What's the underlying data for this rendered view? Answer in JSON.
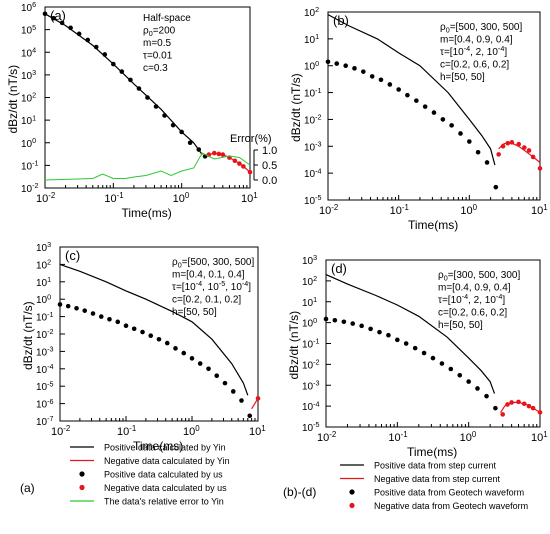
{
  "panels": [
    {
      "id": "a",
      "label": "(a)",
      "params": [
        "Half-space",
        "ρ0=200",
        "m=0.5",
        "τ=0.01",
        "c=0.3"
      ],
      "xlabel": "Time(ms)",
      "ylabel": "dBz/dt (nT/s)",
      "x_ticks": [
        "10-2",
        "10-1",
        "100",
        "101"
      ],
      "y_ticks": [
        "10-2",
        "10-1",
        "100",
        "101",
        "102",
        "103",
        "104",
        "105",
        "106"
      ],
      "error_axis": {
        "title": "Error(%)",
        "ticks": [
          "0.0",
          "0.5",
          "1.0"
        ]
      }
    },
    {
      "id": "b",
      "label": "(b)",
      "params": [
        "ρ0=[500, 300, 500]",
        "m=[0.4, 0.9, 0.4]",
        "τ=[10-4, 2, 10-4]",
        "c=[0.2, 0.6, 0.2]",
        "h=[50, 50]"
      ],
      "xlabel": "Time(ms)",
      "ylabel": "dBz/dt (nT/s)",
      "x_ticks": [
        "10-2",
        "10-1",
        "100",
        "101"
      ],
      "y_ticks": [
        "10-5",
        "10-4",
        "10-3",
        "10-2",
        "10-1",
        "100",
        "101",
        "102"
      ]
    },
    {
      "id": "c",
      "label": "(c)",
      "params": [
        "ρ0=[500, 300, 500]",
        "m=[0.4, 0.1, 0.4]",
        "τ=[10-4, 10-5, 10-4]",
        "c=[0.2, 0.1, 0.2]",
        "h=[50, 50]"
      ],
      "xlabel": "Time(ms)",
      "ylabel": "dBz/dt (nT/s)",
      "x_ticks": [
        "10-2",
        "10-1",
        "100",
        "101"
      ],
      "y_ticks": [
        "10-7",
        "10-6",
        "10-5",
        "10-4",
        "10-3",
        "10-2",
        "10-1",
        "100",
        "101",
        "102",
        "103"
      ]
    },
    {
      "id": "d",
      "label": "(d)",
      "params": [
        "ρ0=[300, 500, 300]",
        "m=[0.4, 0.9, 0.4]",
        "τ=[10-4, 2, 10-4]",
        "c=[0.2, 0.6, 0.2]",
        "h=[50, 50]"
      ],
      "xlabel": "Time(ms)",
      "ylabel": "dBz/dt (nT/s)",
      "x_ticks": [
        "10-2",
        "10-1",
        "100",
        "101"
      ],
      "y_ticks": [
        "10-5",
        "10-4",
        "10-3",
        "10-2",
        "10-1",
        "100",
        "101",
        "102",
        "103"
      ]
    }
  ],
  "legends": [
    {
      "id": "a",
      "tag": "(a)",
      "items": [
        {
          "text": "Positive data  calculated by Yin",
          "style": "line",
          "color": "#000000"
        },
        {
          "text": "Negative data calculated by Yin",
          "style": "line",
          "color": "#e8141b"
        },
        {
          "text": "Positive data calculated by us",
          "style": "dot",
          "color": "#000000"
        },
        {
          "text": "Negative data calculated by us",
          "style": "dot",
          "color": "#e8141b"
        },
        {
          "text": "The data's relative error to Yin",
          "style": "line",
          "color": "#2ec832"
        }
      ]
    },
    {
      "id": "bd",
      "tag": "(b)-(d)",
      "items": [
        {
          "text": "Positive data from step current",
          "style": "line",
          "color": "#000000"
        },
        {
          "text": "Negative data from step current",
          "style": "line",
          "color": "#e8141b"
        },
        {
          "text": "Positive data from Geotech waveform",
          "style": "dot",
          "color": "#000000"
        },
        {
          "text": "Negative data from Geotech waveform",
          "style": "dot",
          "color": "#e8141b"
        }
      ]
    }
  ],
  "colors": {
    "positive": "#000000",
    "negative": "#e8141b",
    "error": "#2ec832"
  },
  "chart_data": [
    {
      "panel": "a",
      "type": "line",
      "xscale": "log",
      "yscale": "log",
      "xlim": [
        0.01,
        10
      ],
      "ylim": [
        0.01,
        1000000
      ],
      "series": [
        {
          "name": "Positive data  calculated by Yin",
          "style": "line",
          "color": "#000000",
          "x": [
            0.01,
            0.02,
            0.05,
            0.1,
            0.2,
            0.5,
            1.0,
            1.5,
            2.0
          ],
          "y": [
            500000,
            150000,
            20000,
            3000,
            400,
            30,
            3,
            1.0,
            0.3
          ]
        },
        {
          "name": "Positive data calculated by us",
          "style": "dot",
          "color": "#000000",
          "x": [
            0.01,
            0.0133,
            0.0178,
            0.0237,
            0.0316,
            0.0422,
            0.0562,
            0.075,
            0.1,
            0.133,
            0.178,
            0.237,
            0.316,
            0.422,
            0.562,
            0.75,
            1.0,
            1.33,
            1.78,
            2.2
          ],
          "y": [
            500000,
            320000,
            200000,
            120000,
            65000,
            35000,
            17000,
            8000,
            3000,
            1400,
            600,
            250,
            100,
            40,
            16,
            6,
            3,
            1.0,
            0.5,
            0.25
          ]
        },
        {
          "name": "Negative data calculated by Yin",
          "style": "line",
          "color": "#e8141b",
          "x": [
            2.5,
            3.0,
            4.0,
            5.0,
            6.5,
            8.0,
            10.0
          ],
          "y": [
            0.3,
            0.35,
            0.3,
            0.22,
            0.14,
            0.09,
            0.05
          ]
        },
        {
          "name": "Negative data calculated by us",
          "style": "dot",
          "color": "#e8141b",
          "x": [
            2.5,
            3.0,
            3.5,
            4.0,
            5.0,
            6.0,
            7.0,
            8.0,
            10.0
          ],
          "y": [
            0.3,
            0.35,
            0.32,
            0.3,
            0.22,
            0.16,
            0.12,
            0.09,
            0.05
          ]
        },
        {
          "name": "The data's relative error to Yin",
          "style": "line",
          "color": "#2ec832",
          "axis": "error",
          "x": [
            0.01,
            0.02,
            0.05,
            0.07,
            0.1,
            0.15,
            0.2,
            0.3,
            0.5,
            0.7,
            1.0,
            1.5,
            2.0,
            3.0,
            5.0,
            7.0,
            10.0
          ],
          "y": [
            0.0,
            0.02,
            0.05,
            0.2,
            0.05,
            0.05,
            0.1,
            0.15,
            0.3,
            0.15,
            0.3,
            0.4,
            0.9,
            0.7,
            0.8,
            0.75,
            0.5
          ]
        }
      ],
      "error_axis": {
        "ylim": [
          0,
          1.0
        ],
        "ticks": [
          0.0,
          0.5,
          1.0
        ],
        "title": "Error(%)"
      }
    },
    {
      "panel": "b",
      "type": "line",
      "xscale": "log",
      "yscale": "log",
      "xlim": [
        0.01,
        10
      ],
      "ylim": [
        1e-05,
        100
      ],
      "series": [
        {
          "name": "Positive data from step current",
          "style": "line",
          "color": "#000000",
          "x": [
            0.01,
            0.02,
            0.05,
            0.1,
            0.2,
            0.5,
            1.0,
            1.5,
            2.0,
            2.3
          ],
          "y": [
            80,
            30,
            10,
            3,
            1.0,
            0.1,
            0.01,
            0.0025,
            0.0008,
            0.0002
          ]
        },
        {
          "name": "Positive data from Geotech waveform",
          "style": "dot",
          "color": "#000000",
          "x": [
            0.01,
            0.0133,
            0.0178,
            0.0237,
            0.0316,
            0.0422,
            0.0562,
            0.075,
            0.1,
            0.133,
            0.178,
            0.237,
            0.316,
            0.422,
            0.562,
            0.75,
            1.0,
            1.33,
            1.78,
            2.37
          ],
          "y": [
            1.4,
            1.2,
            1.0,
            0.8,
            0.6,
            0.4,
            0.3,
            0.2,
            0.13,
            0.08,
            0.05,
            0.03,
            0.018,
            0.01,
            0.006,
            0.003,
            0.0015,
            0.0006,
            0.00025,
            3e-05
          ]
        },
        {
          "name": "Negative data from step current",
          "style": "line",
          "color": "#e8141b",
          "x": [
            2.6,
            3.0,
            3.5,
            4.0,
            5.0,
            6.5,
            8.0,
            10.0
          ],
          "y": [
            0.0008,
            0.0012,
            0.0014,
            0.0013,
            0.001,
            0.0006,
            0.0004,
            0.00025
          ]
        },
        {
          "name": "Negative data from Geotech waveform",
          "style": "dot",
          "color": "#e8141b",
          "x": [
            2.6,
            3.0,
            3.5,
            4.0,
            5.0,
            6.0,
            7.0,
            8.0,
            10.0
          ],
          "y": [
            0.0005,
            0.001,
            0.0013,
            0.0014,
            0.0012,
            0.0009,
            0.0007,
            0.0004,
            0.00015
          ]
        }
      ]
    },
    {
      "panel": "c",
      "type": "line",
      "xscale": "log",
      "yscale": "log",
      "xlim": [
        0.01,
        10
      ],
      "ylim": [
        1e-07,
        1000
      ],
      "series": [
        {
          "name": "Positive data from step current",
          "style": "line",
          "color": "#000000",
          "x": [
            0.01,
            0.02,
            0.05,
            0.1,
            0.2,
            0.5,
            1.0,
            2.0,
            4.0,
            6.0,
            7.0
          ],
          "y": [
            100,
            40,
            10,
            3,
            1.0,
            0.2,
            0.05,
            0.005,
            0.0002,
            1.5e-05,
            3e-06
          ]
        },
        {
          "name": "Positive data from Geotech waveform",
          "style": "dot",
          "color": "#000000",
          "x": [
            0.01,
            0.0133,
            0.0178,
            0.0237,
            0.0316,
            0.0422,
            0.0562,
            0.075,
            0.1,
            0.133,
            0.178,
            0.237,
            0.316,
            0.422,
            0.562,
            0.75,
            1.0,
            1.33,
            1.78,
            2.37,
            3.16,
            4.22,
            5.62,
            7.5
          ],
          "y": [
            0.5,
            0.4,
            0.3,
            0.22,
            0.15,
            0.1,
            0.07,
            0.05,
            0.03,
            0.02,
            0.013,
            0.008,
            0.005,
            0.003,
            0.0015,
            0.0008,
            0.0004,
            0.0002,
            0.0001,
            4e-05,
            1.5e-05,
            5e-06,
            1.5e-06,
            2e-07
          ]
        },
        {
          "name": "Negative data from step current",
          "style": "line",
          "color": "#e8141b",
          "x": [
            8.0,
            10.0
          ],
          "y": [
            5e-07,
            2e-06
          ]
        },
        {
          "name": "Negative data from Geotech waveform",
          "style": "dot",
          "color": "#e8141b",
          "x": [
            10.0
          ],
          "y": [
            2e-06
          ]
        }
      ]
    },
    {
      "panel": "d",
      "type": "line",
      "xscale": "log",
      "yscale": "log",
      "xlim": [
        0.01,
        10
      ],
      "ylim": [
        1e-05,
        1000
      ],
      "series": [
        {
          "name": "Positive data from step current",
          "style": "line",
          "color": "#000000",
          "x": [
            0.01,
            0.02,
            0.05,
            0.1,
            0.2,
            0.5,
            1.0,
            1.5,
            2.0,
            2.3
          ],
          "y": [
            200,
            70,
            20,
            7,
            2,
            0.2,
            0.02,
            0.005,
            0.0015,
            0.0004
          ]
        },
        {
          "name": "Positive data from Geotech waveform",
          "style": "dot",
          "color": "#000000",
          "x": [
            0.01,
            0.0133,
            0.0178,
            0.0237,
            0.0316,
            0.0422,
            0.0562,
            0.075,
            0.1,
            0.133,
            0.178,
            0.237,
            0.316,
            0.422,
            0.562,
            0.75,
            1.0,
            1.33,
            1.78,
            2.37
          ],
          "y": [
            1.5,
            1.3,
            1.1,
            0.9,
            0.7,
            0.5,
            0.35,
            0.25,
            0.15,
            0.1,
            0.06,
            0.035,
            0.02,
            0.011,
            0.006,
            0.003,
            0.0015,
            0.0007,
            0.0003,
            8e-05
          ]
        },
        {
          "name": "Negative data from step current",
          "style": "line",
          "color": "#e8141b",
          "x": [
            2.8,
            3.2,
            4.0,
            5.0,
            6.5,
            8.0,
            10.0
          ],
          "y": [
            5e-05,
            0.0001,
            0.00015,
            0.00015,
            0.00012,
            8e-05,
            5e-05
          ]
        },
        {
          "name": "Negative data from Geotech waveform",
          "style": "dot",
          "color": "#e8141b",
          "x": [
            3.0,
            3.5,
            4.0,
            5.0,
            6.0,
            7.0,
            8.0,
            10.0
          ],
          "y": [
            4e-05,
            0.00012,
            0.00015,
            0.00016,
            0.00013,
            0.0001,
            8e-05,
            5e-05
          ]
        }
      ]
    }
  ]
}
